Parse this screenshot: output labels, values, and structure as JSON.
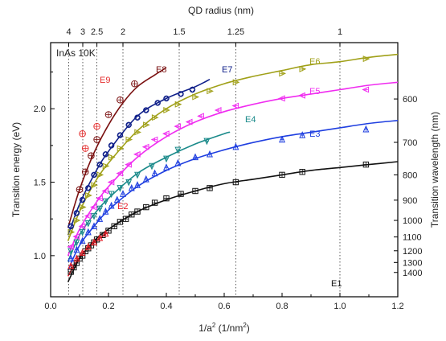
{
  "chart_data": {
    "type": "scatter",
    "title": "",
    "sample_label": "InAs 10K",
    "xlabel": "1/a² (1/nm²)",
    "xlabel_parts": {
      "base": "1/a",
      "sup": "2",
      "mid": " (1/nm",
      "sup2": "2",
      "end": ")"
    },
    "ylabel": "Transition energy (eV)",
    "top_axis_label": "QD radius (nm)",
    "right_axis_label": "Transition wavelength (nm)",
    "xlim": [
      0,
      1.2
    ],
    "ylim": [
      0.72,
      2.45
    ],
    "x_ticks": [
      "0.0",
      "0.2",
      "0.4",
      "0.6",
      "0.8",
      "1.0",
      "1.2"
    ],
    "y_ticks": [
      "1.0",
      "1.5",
      "2.0"
    ],
    "top_ticks": [
      {
        "label": "4",
        "radius": 4
      },
      {
        "label": "3",
        "radius": 3
      },
      {
        "label": "2.5",
        "radius": 2.5
      },
      {
        "label": "2",
        "radius": 2
      },
      {
        "label": "1.5",
        "radius": 1.5
      },
      {
        "label": "1.25",
        "radius": 1.25
      },
      {
        "label": "1",
        "radius": 1
      }
    ],
    "right_ticks": [
      {
        "label": "600",
        "nm": 600
      },
      {
        "label": "700",
        "nm": 700
      },
      {
        "label": "800",
        "nm": 800
      },
      {
        "label": "900",
        "nm": 900
      },
      {
        "label": "1000",
        "nm": 1000
      },
      {
        "label": "1100",
        "nm": 1100
      },
      {
        "label": "1200",
        "nm": 1200
      },
      {
        "label": "1300",
        "nm": 1300
      },
      {
        "label": "1400",
        "nm": 1400
      }
    ],
    "grid": "vertical dotted lines at top-axis radius ticks",
    "series": [
      {
        "name": "E1",
        "color": "#111111",
        "marker": "square",
        "points": [
          [
            0.07,
            0.89
          ],
          [
            0.08,
            0.92
          ],
          [
            0.09,
            0.95
          ],
          [
            0.1,
            0.98
          ],
          [
            0.11,
            1.0
          ],
          [
            0.12,
            1.03
          ],
          [
            0.13,
            1.05
          ],
          [
            0.14,
            1.07
          ],
          [
            0.15,
            1.09
          ],
          [
            0.16,
            1.11
          ],
          [
            0.18,
            1.14
          ],
          [
            0.2,
            1.17
          ],
          [
            0.22,
            1.2
          ],
          [
            0.24,
            1.23
          ],
          [
            0.26,
            1.25
          ],
          [
            0.28,
            1.28
          ],
          [
            0.3,
            1.3
          ],
          [
            0.33,
            1.33
          ],
          [
            0.36,
            1.36
          ],
          [
            0.4,
            1.39
          ],
          [
            0.45,
            1.42
          ],
          [
            0.5,
            1.44
          ],
          [
            0.55,
            1.46
          ],
          [
            0.64,
            1.5
          ],
          [
            0.8,
            1.55
          ],
          [
            0.87,
            1.57
          ],
          [
            1.09,
            1.62
          ]
        ],
        "curve": [
          [
            0.06,
            0.82
          ],
          [
            0.1,
            0.98
          ],
          [
            0.15,
            1.1
          ],
          [
            0.2,
            1.18
          ],
          [
            0.3,
            1.3
          ],
          [
            0.4,
            1.38
          ],
          [
            0.5,
            1.44
          ],
          [
            0.6,
            1.49
          ],
          [
            0.7,
            1.52
          ],
          [
            0.8,
            1.55
          ],
          [
            0.9,
            1.58
          ],
          [
            1.0,
            1.6
          ],
          [
            1.1,
            1.62
          ],
          [
            1.2,
            1.64
          ]
        ]
      },
      {
        "name": "E2",
        "color": "#e8202a",
        "marker": "triangle-up",
        "points": [
          [
            0.07,
            0.93
          ],
          [
            0.09,
            0.98
          ],
          [
            0.11,
            1.02
          ],
          [
            0.13,
            1.06
          ],
          [
            0.15,
            1.09
          ],
          [
            0.17,
            1.12
          ],
          [
            0.19,
            1.15
          ]
        ],
        "curve": [
          [
            0.06,
            0.86
          ],
          [
            0.1,
            0.99
          ],
          [
            0.15,
            1.09
          ],
          [
            0.2,
            1.16
          ]
        ]
      },
      {
        "name": "E3",
        "color": "#1f3fe0",
        "marker": "triangle-up",
        "points": [
          [
            0.07,
            0.98
          ],
          [
            0.09,
            1.04
          ],
          [
            0.11,
            1.1
          ],
          [
            0.13,
            1.16
          ],
          [
            0.15,
            1.2
          ],
          [
            0.17,
            1.25
          ],
          [
            0.19,
            1.3
          ],
          [
            0.21,
            1.34
          ],
          [
            0.23,
            1.38
          ],
          [
            0.25,
            1.42
          ],
          [
            0.28,
            1.46
          ],
          [
            0.3,
            1.48
          ],
          [
            0.33,
            1.52
          ],
          [
            0.36,
            1.56
          ],
          [
            0.4,
            1.6
          ],
          [
            0.44,
            1.63
          ],
          [
            0.5,
            1.67
          ],
          [
            0.55,
            1.69
          ],
          [
            0.64,
            1.74
          ],
          [
            0.8,
            1.79
          ],
          [
            0.87,
            1.82
          ],
          [
            1.09,
            1.86
          ]
        ],
        "curve": [
          [
            0.06,
            0.9
          ],
          [
            0.1,
            1.07
          ],
          [
            0.15,
            1.2
          ],
          [
            0.2,
            1.31
          ],
          [
            0.3,
            1.47
          ],
          [
            0.4,
            1.58
          ],
          [
            0.5,
            1.66
          ],
          [
            0.6,
            1.72
          ],
          [
            0.7,
            1.77
          ],
          [
            0.8,
            1.81
          ],
          [
            0.9,
            1.84
          ],
          [
            1.0,
            1.87
          ],
          [
            1.1,
            1.9
          ],
          [
            1.2,
            1.92
          ]
        ]
      },
      {
        "name": "E4",
        "color": "#1a8a8a",
        "marker": "triangle-down",
        "points": [
          [
            0.07,
            1.03
          ],
          [
            0.09,
            1.09
          ],
          [
            0.11,
            1.16
          ],
          [
            0.13,
            1.22
          ],
          [
            0.15,
            1.27
          ],
          [
            0.17,
            1.32
          ],
          [
            0.19,
            1.37
          ],
          [
            0.21,
            1.42
          ],
          [
            0.24,
            1.46
          ],
          [
            0.27,
            1.5
          ],
          [
            0.3,
            1.55
          ],
          [
            0.35,
            1.61
          ],
          [
            0.4,
            1.66
          ],
          [
            0.44,
            1.72
          ],
          [
            0.54,
            1.78
          ]
        ],
        "curve": [
          [
            0.06,
            0.96
          ],
          [
            0.1,
            1.14
          ],
          [
            0.15,
            1.28
          ],
          [
            0.2,
            1.39
          ],
          [
            0.3,
            1.56
          ],
          [
            0.4,
            1.67
          ],
          [
            0.5,
            1.76
          ],
          [
            0.6,
            1.83
          ],
          [
            0.62,
            1.84
          ]
        ]
      },
      {
        "name": "E5",
        "color": "#f02cf0",
        "marker": "triangle-left",
        "points": [
          [
            0.07,
            1.06
          ],
          [
            0.09,
            1.13
          ],
          [
            0.11,
            1.2
          ],
          [
            0.13,
            1.27
          ],
          [
            0.15,
            1.33
          ],
          [
            0.17,
            1.39
          ],
          [
            0.19,
            1.44
          ],
          [
            0.21,
            1.5
          ],
          [
            0.24,
            1.56
          ],
          [
            0.27,
            1.62
          ],
          [
            0.3,
            1.69
          ],
          [
            0.33,
            1.74
          ],
          [
            0.36,
            1.79
          ],
          [
            0.4,
            1.83
          ],
          [
            0.44,
            1.88
          ],
          [
            0.48,
            1.91
          ],
          [
            0.52,
            1.95
          ],
          [
            0.58,
            1.99
          ],
          [
            0.64,
            2.02
          ],
          [
            0.8,
            2.07
          ],
          [
            0.87,
            2.09
          ],
          [
            1.09,
            2.13
          ]
        ],
        "curve": [
          [
            0.06,
            1.0
          ],
          [
            0.1,
            1.18
          ],
          [
            0.15,
            1.34
          ],
          [
            0.2,
            1.47
          ],
          [
            0.3,
            1.67
          ],
          [
            0.4,
            1.81
          ],
          [
            0.5,
            1.91
          ],
          [
            0.6,
            1.98
          ],
          [
            0.7,
            2.03
          ],
          [
            0.8,
            2.07
          ],
          [
            0.9,
            2.1
          ],
          [
            1.0,
            2.13
          ],
          [
            1.1,
            2.16
          ],
          [
            1.2,
            2.18
          ]
        ]
      },
      {
        "name": "E6",
        "color": "#a0a018",
        "marker": "triangle-right",
        "points": [
          [
            0.07,
            1.16
          ],
          [
            0.09,
            1.24
          ],
          [
            0.11,
            1.33
          ],
          [
            0.13,
            1.41
          ],
          [
            0.15,
            1.48
          ],
          [
            0.17,
            1.55
          ],
          [
            0.19,
            1.61
          ],
          [
            0.21,
            1.67
          ],
          [
            0.24,
            1.73
          ],
          [
            0.27,
            1.79
          ],
          [
            0.3,
            1.84
          ],
          [
            0.33,
            1.89
          ],
          [
            0.36,
            1.94
          ],
          [
            0.4,
            1.99
          ],
          [
            0.44,
            2.03
          ],
          [
            0.5,
            2.08
          ],
          [
            0.55,
            2.12
          ],
          [
            0.64,
            2.18
          ],
          [
            0.8,
            2.24
          ],
          [
            0.87,
            2.27
          ],
          [
            1.09,
            2.34
          ]
        ],
        "curve": [
          [
            0.06,
            1.1
          ],
          [
            0.1,
            1.3
          ],
          [
            0.15,
            1.49
          ],
          [
            0.2,
            1.63
          ],
          [
            0.3,
            1.85
          ],
          [
            0.4,
            2.0
          ],
          [
            0.5,
            2.1
          ],
          [
            0.6,
            2.17
          ],
          [
            0.7,
            2.22
          ],
          [
            0.8,
            2.26
          ],
          [
            0.9,
            2.3
          ],
          [
            1.0,
            2.32
          ],
          [
            1.1,
            2.35
          ],
          [
            1.2,
            2.37
          ]
        ]
      },
      {
        "name": "E7",
        "color": "#10208a",
        "marker": "diamond-circle",
        "points": [
          [
            0.07,
            1.2
          ],
          [
            0.09,
            1.29
          ],
          [
            0.11,
            1.38
          ],
          [
            0.13,
            1.46
          ],
          [
            0.15,
            1.55
          ],
          [
            0.17,
            1.62
          ],
          [
            0.19,
            1.69
          ],
          [
            0.21,
            1.75
          ],
          [
            0.24,
            1.82
          ],
          [
            0.27,
            1.89
          ],
          [
            0.3,
            1.94
          ],
          [
            0.33,
            1.99
          ],
          [
            0.37,
            2.04
          ],
          [
            0.4,
            2.07
          ],
          [
            0.45,
            2.1
          ],
          [
            0.49,
            2.13
          ]
        ],
        "curve": [
          [
            0.06,
            1.14
          ],
          [
            0.1,
            1.35
          ],
          [
            0.15,
            1.55
          ],
          [
            0.2,
            1.71
          ],
          [
            0.3,
            1.95
          ],
          [
            0.4,
            2.07
          ],
          [
            0.5,
            2.15
          ],
          [
            0.55,
            2.2
          ]
        ]
      },
      {
        "name": "E8",
        "color": "#7a1010",
        "marker": "circle-cross",
        "points": [
          [
            0.1,
            1.45
          ],
          [
            0.12,
            1.57
          ],
          [
            0.14,
            1.68
          ],
          [
            0.16,
            1.79
          ],
          [
            0.2,
            1.96
          ],
          [
            0.24,
            2.06
          ],
          [
            0.29,
            2.17
          ]
        ],
        "curve": [
          [
            0.06,
            1.19
          ],
          [
            0.1,
            1.45
          ],
          [
            0.15,
            1.7
          ],
          [
            0.2,
            1.89
          ],
          [
            0.25,
            2.04
          ],
          [
            0.3,
            2.15
          ],
          [
            0.36,
            2.23
          ],
          [
            0.4,
            2.28
          ]
        ]
      },
      {
        "name": "E9",
        "color": "#e53030",
        "marker": "circle-cross",
        "points": [
          [
            0.11,
            1.83
          ],
          [
            0.12,
            1.73
          ],
          [
            0.16,
            1.88
          ]
        ],
        "curve": []
      }
    ]
  }
}
